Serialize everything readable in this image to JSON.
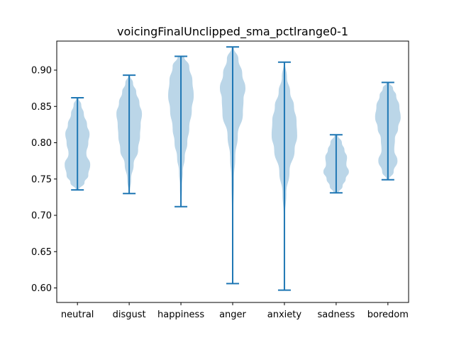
{
  "chart_data": {
    "type": "violin",
    "title": "voicingFinalUnclipped_sma_pctlrange0-1",
    "xlabel": "",
    "ylabel": "",
    "categories": [
      "neutral",
      "disgust",
      "happiness",
      "anger",
      "anxiety",
      "sadness",
      "boredom"
    ],
    "ylim": [
      0.58,
      0.94
    ],
    "yticks": [
      0.6,
      0.65,
      0.7,
      0.75,
      0.8,
      0.85,
      0.9
    ],
    "ytick_labels": [
      "0.60",
      "0.65",
      "0.70",
      "0.75",
      "0.80",
      "0.85",
      "0.90"
    ],
    "grid": false,
    "colors": {
      "body": "#1f77b4",
      "body_alpha": 0.3,
      "lines": "#1f77b4"
    },
    "series": [
      {
        "category": "neutral",
        "min": 0.735,
        "max": 0.862,
        "density": [
          [
            0.735,
            0.12
          ],
          [
            0.745,
            0.55
          ],
          [
            0.755,
            0.85
          ],
          [
            0.77,
            1.0
          ],
          [
            0.785,
            0.7
          ],
          [
            0.8,
            0.85
          ],
          [
            0.812,
            0.95
          ],
          [
            0.825,
            0.75
          ],
          [
            0.84,
            0.5
          ],
          [
            0.852,
            0.3
          ],
          [
            0.862,
            0.08
          ]
        ]
      },
      {
        "category": "disgust",
        "min": 0.73,
        "max": 0.893,
        "density": [
          [
            0.73,
            0.04
          ],
          [
            0.75,
            0.15
          ],
          [
            0.77,
            0.35
          ],
          [
            0.79,
            0.7
          ],
          [
            0.81,
            0.85
          ],
          [
            0.825,
            0.9
          ],
          [
            0.84,
            1.0
          ],
          [
            0.855,
            0.8
          ],
          [
            0.87,
            0.55
          ],
          [
            0.882,
            0.3
          ],
          [
            0.893,
            0.06
          ]
        ]
      },
      {
        "category": "happiness",
        "min": 0.712,
        "max": 0.919,
        "density": [
          [
            0.712,
            0.03
          ],
          [
            0.74,
            0.08
          ],
          [
            0.76,
            0.15
          ],
          [
            0.78,
            0.3
          ],
          [
            0.8,
            0.5
          ],
          [
            0.82,
            0.65
          ],
          [
            0.845,
            0.85
          ],
          [
            0.865,
            1.0
          ],
          [
            0.885,
            0.9
          ],
          [
            0.905,
            0.65
          ],
          [
            0.919,
            0.25
          ]
        ]
      },
      {
        "category": "anger",
        "min": 0.606,
        "max": 0.932,
        "density": [
          [
            0.606,
            0.02
          ],
          [
            0.65,
            0.03
          ],
          [
            0.7,
            0.05
          ],
          [
            0.75,
            0.1
          ],
          [
            0.78,
            0.2
          ],
          [
            0.81,
            0.4
          ],
          [
            0.84,
            0.8
          ],
          [
            0.86,
            0.85
          ],
          [
            0.875,
            1.0
          ],
          [
            0.895,
            0.75
          ],
          [
            0.915,
            0.45
          ],
          [
            0.932,
            0.08
          ]
        ]
      },
      {
        "category": "anxiety",
        "min": 0.597,
        "max": 0.911,
        "density": [
          [
            0.597,
            0.02
          ],
          [
            0.65,
            0.03
          ],
          [
            0.7,
            0.05
          ],
          [
            0.73,
            0.15
          ],
          [
            0.76,
            0.4
          ],
          [
            0.79,
            0.8
          ],
          [
            0.81,
            1.0
          ],
          [
            0.83,
            0.95
          ],
          [
            0.85,
            0.75
          ],
          [
            0.87,
            0.45
          ],
          [
            0.89,
            0.2
          ],
          [
            0.911,
            0.04
          ]
        ]
      },
      {
        "category": "sadness",
        "min": 0.731,
        "max": 0.811,
        "density": [
          [
            0.731,
            0.2
          ],
          [
            0.74,
            0.5
          ],
          [
            0.75,
            0.75
          ],
          [
            0.76,
            1.0
          ],
          [
            0.77,
            0.8
          ],
          [
            0.78,
            0.85
          ],
          [
            0.79,
            0.65
          ],
          [
            0.8,
            0.45
          ],
          [
            0.811,
            0.12
          ]
        ]
      },
      {
        "category": "boredom",
        "min": 0.749,
        "max": 0.883,
        "density": [
          [
            0.749,
            0.1
          ],
          [
            0.76,
            0.45
          ],
          [
            0.775,
            0.75
          ],
          [
            0.79,
            0.5
          ],
          [
            0.805,
            0.55
          ],
          [
            0.82,
            0.8
          ],
          [
            0.835,
            1.0
          ],
          [
            0.85,
            0.9
          ],
          [
            0.865,
            0.65
          ],
          [
            0.875,
            0.4
          ],
          [
            0.883,
            0.1
          ]
        ]
      }
    ]
  }
}
